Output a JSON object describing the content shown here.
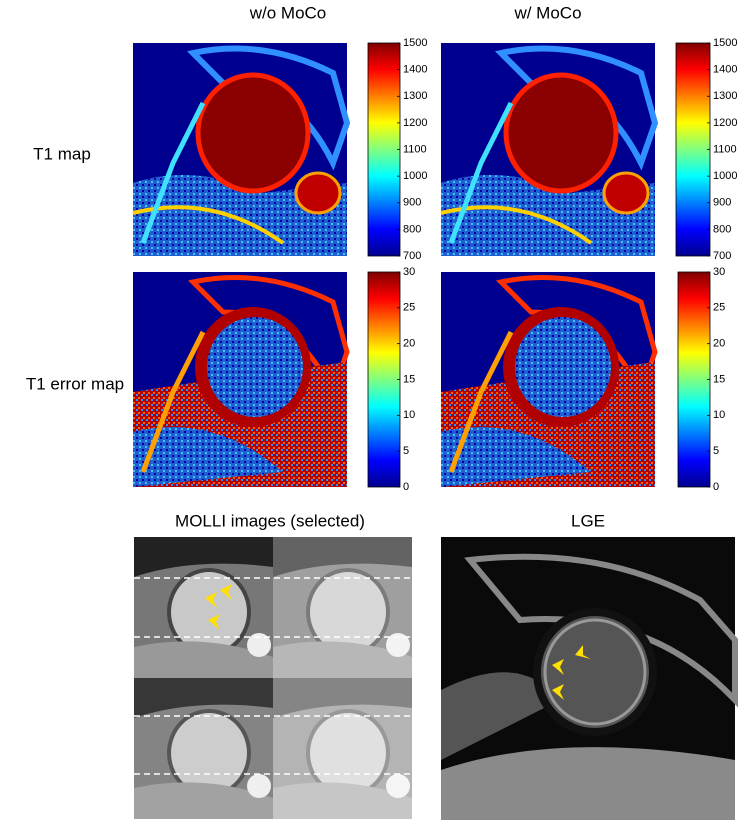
{
  "column_titles": [
    "w/o MoCo",
    "w/ MoCo"
  ],
  "row_labels": [
    "T1 map",
    "T1 error map"
  ],
  "colorbars": [
    {
      "ticks": [
        700,
        800,
        900,
        1000,
        1100,
        1200,
        1300,
        1400,
        1500
      ]
    },
    {
      "ticks": [
        700,
        800,
        900,
        1000,
        1100,
        1200,
        1300,
        1400,
        1500
      ]
    },
    {
      "ticks": [
        0,
        5,
        10,
        15,
        20,
        25,
        30
      ]
    },
    {
      "ticks": [
        0,
        5,
        10,
        15,
        20,
        25,
        30
      ]
    }
  ],
  "bottom_titles": [
    "MOLLI images (selected)",
    "LGE"
  ]
}
